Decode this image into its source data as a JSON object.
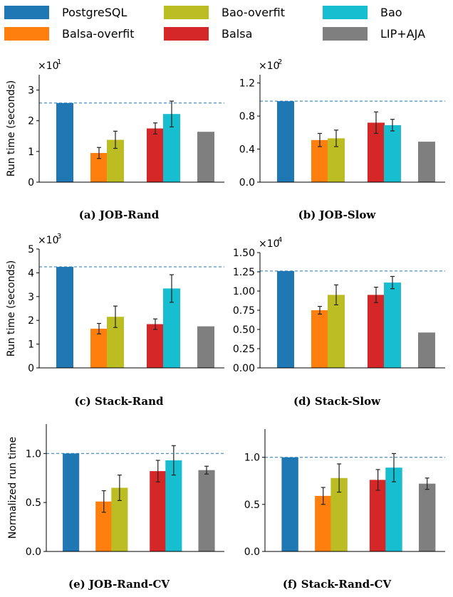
{
  "legend": [
    {
      "label": "PostgreSQL",
      "color": "#1f77b4"
    },
    {
      "label": "Bao-overfit",
      "color": "#bcbd22"
    },
    {
      "label": "Bao",
      "color": "#17becf"
    },
    {
      "label": "Balsa-overfit",
      "color": "#ff7f0e"
    },
    {
      "label": "Balsa",
      "color": "#d62728"
    },
    {
      "label": "LIP+AJA",
      "color": "#7f7f7f"
    }
  ],
  "chart_data": [
    {
      "type": "bar",
      "caption": "(a) JOB-Rand",
      "ylabel": "Run time (seconds)",
      "multiplier": "×10",
      "multiplier_exp": "1",
      "ylim": [
        0,
        3.5
      ],
      "yticks": [
        "0",
        "1",
        "2",
        "3"
      ],
      "ytick_values": [
        0,
        1,
        2,
        3
      ],
      "baseline": 2.58,
      "categories": [
        "PostgreSQL",
        "Balsa-overfit",
        "Bao-overfit",
        "Balsa",
        "Bao",
        "LIP+AJA"
      ],
      "values": [
        2.58,
        0.95,
        1.38,
        1.75,
        2.22,
        1.64
      ],
      "errors": [
        null,
        0.18,
        0.28,
        0.18,
        0.42,
        null
      ]
    },
    {
      "type": "bar",
      "caption": "(b) JOB-Slow",
      "ylabel": "",
      "multiplier": "×10",
      "multiplier_exp": "2",
      "ylim": [
        0,
        1.3
      ],
      "yticks": [
        "0.0",
        "0.4",
        "0.8",
        "1.2"
      ],
      "ytick_values": [
        0,
        0.4,
        0.8,
        1.2
      ],
      "baseline": 0.98,
      "categories": [
        "PostgreSQL",
        "Balsa-overfit",
        "Bao-overfit",
        "Balsa",
        "Bao",
        "LIP+AJA"
      ],
      "values": [
        0.98,
        0.51,
        0.53,
        0.72,
        0.69,
        0.49
      ],
      "errors": [
        null,
        0.08,
        0.1,
        0.13,
        0.07,
        null
      ]
    },
    {
      "type": "bar",
      "caption": "(c) Stack-Rand",
      "ylabel": "Run time (seconds)",
      "multiplier": "×10",
      "multiplier_exp": "3",
      "ylim": [
        0,
        5
      ],
      "yticks": [
        "0",
        "1",
        "2",
        "3",
        "4",
        "5"
      ],
      "ytick_values": [
        0,
        1,
        2,
        3,
        4,
        5
      ],
      "baseline": 4.25,
      "categories": [
        "PostgreSQL",
        "Balsa-overfit",
        "Bao-overfit",
        "Balsa",
        "Bao",
        "LIP+AJA"
      ],
      "values": [
        4.25,
        1.65,
        2.15,
        1.84,
        3.34,
        1.75
      ],
      "errors": [
        null,
        0.22,
        0.45,
        0.22,
        0.58,
        null
      ]
    },
    {
      "type": "bar",
      "caption": "(d) Stack-Slow",
      "ylabel": "",
      "multiplier": "×10",
      "multiplier_exp": "4",
      "ylim": [
        0,
        1.5
      ],
      "yticks": [
        "0.00",
        "0.25",
        "0.50",
        "0.75",
        "1.00",
        "1.25",
        "1.50"
      ],
      "ytick_values": [
        0,
        0.25,
        0.5,
        0.75,
        1.0,
        1.25,
        1.5
      ],
      "baseline": 1.26,
      "categories": [
        "PostgreSQL",
        "Balsa-overfit",
        "Bao-overfit",
        "Balsa",
        "Bao",
        "LIP+AJA"
      ],
      "values": [
        1.26,
        0.75,
        0.95,
        0.95,
        1.11,
        0.46
      ],
      "errors": [
        null,
        0.05,
        0.13,
        0.1,
        0.08,
        null
      ]
    },
    {
      "type": "bar",
      "caption": "(e) JOB-Rand-CV",
      "ylabel": "Normalized run time",
      "multiplier": "",
      "multiplier_exp": "",
      "ylim": [
        0,
        1.3
      ],
      "yticks": [
        "0.0",
        "0.5",
        "1.0"
      ],
      "ytick_values": [
        0,
        0.5,
        1.0
      ],
      "baseline": 1.0,
      "categories": [
        "PostgreSQL",
        "Balsa-overfit",
        "Bao-overfit",
        "Balsa",
        "Bao",
        "LIP+AJA"
      ],
      "values": [
        1.0,
        0.51,
        0.65,
        0.82,
        0.93,
        0.83
      ],
      "errors": [
        null,
        0.11,
        0.13,
        0.11,
        0.15,
        0.04
      ]
    },
    {
      "type": "bar",
      "caption": "(f) Stack-Rand-CV",
      "ylabel": "",
      "multiplier": "",
      "multiplier_exp": "",
      "ylim": [
        0,
        1.3
      ],
      "yticks": [
        "0.0",
        "0.5",
        "1.0"
      ],
      "ytick_values": [
        0,
        0.5,
        1.0
      ],
      "baseline": 1.0,
      "categories": [
        "PostgreSQL",
        "Balsa-overfit",
        "Bao-overfit",
        "Balsa",
        "Bao",
        "LIP+AJA"
      ],
      "values": [
        1.0,
        0.59,
        0.78,
        0.76,
        0.89,
        0.72
      ],
      "errors": [
        null,
        0.09,
        0.15,
        0.11,
        0.15,
        0.06
      ]
    }
  ]
}
